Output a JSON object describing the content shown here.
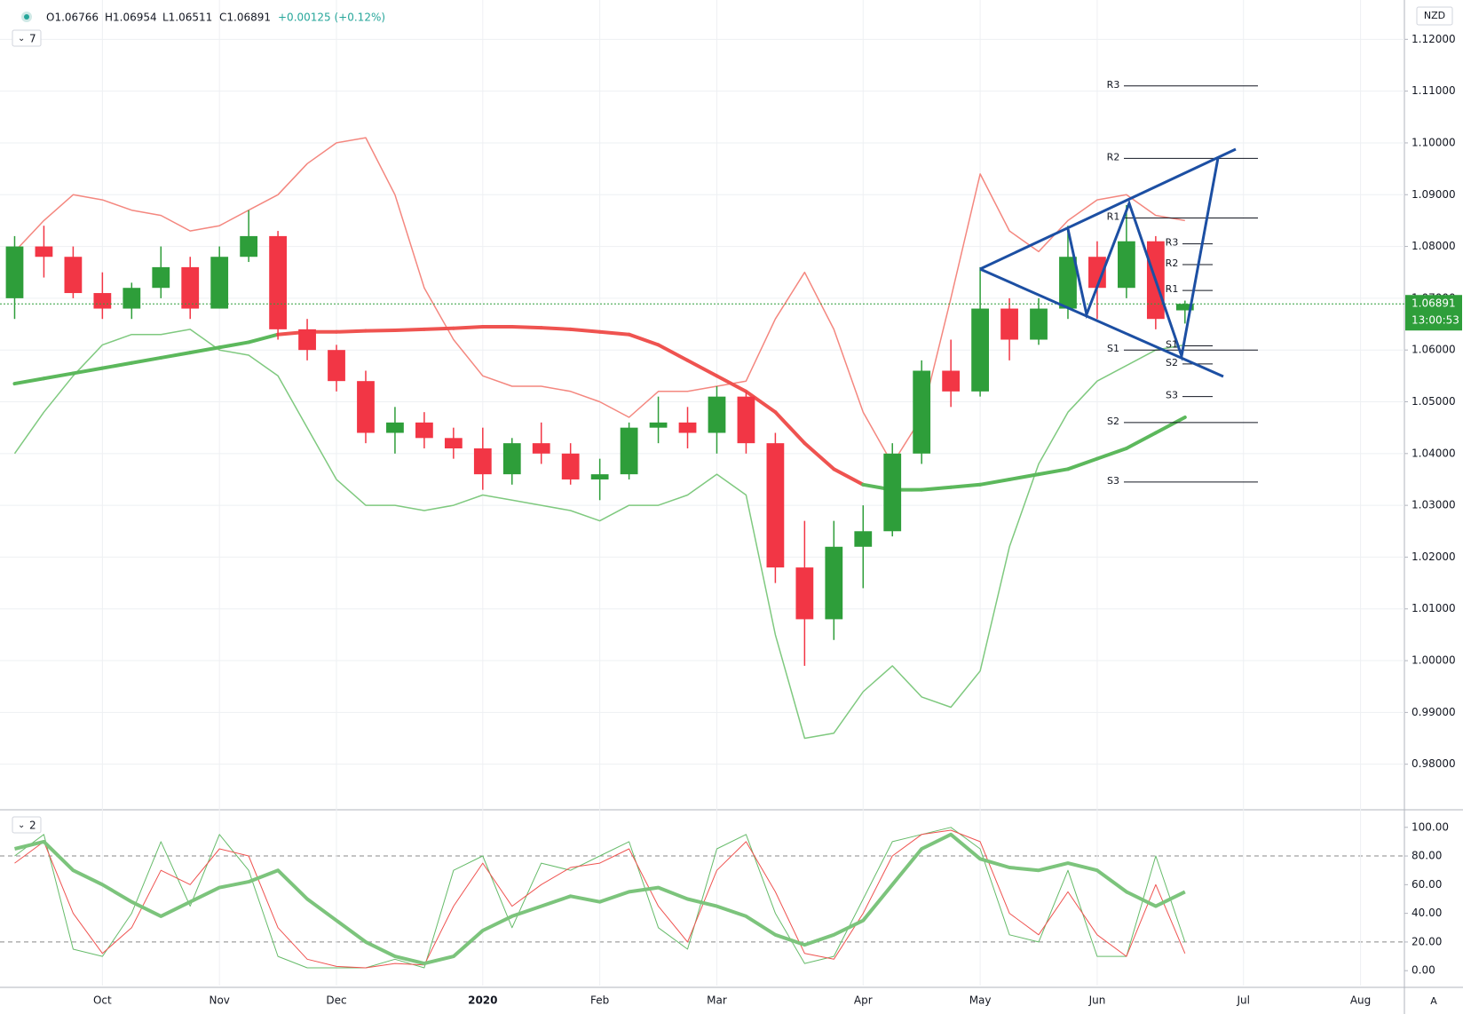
{
  "chart_data": {
    "type": "candlestick",
    "header": {
      "open": "O1.06766",
      "high": "H1.06954",
      "low": "L1.06511",
      "close": "C1.06891",
      "change": "+0.00125 (+0.12%)"
    },
    "legend_main": "7",
    "legend_osc": "2",
    "currency": "NZD",
    "axis_mode": "A",
    "last_price": {
      "value": 1.06891,
      "label": "1.06891"
    },
    "countdown": "13:00:53",
    "categories": [
      null,
      null,
      null,
      "Oct",
      null,
      null,
      null,
      "Nov",
      null,
      null,
      null,
      "Dec",
      null,
      null,
      null,
      null,
      "2020",
      null,
      null,
      null,
      "Feb",
      null,
      null,
      null,
      "Mar",
      null,
      null,
      null,
      null,
      "Apr",
      null,
      null,
      null,
      "May",
      null,
      null,
      null,
      "Jun",
      null,
      null,
      null,
      null,
      "Jul",
      null,
      null,
      null,
      "Aug",
      null
    ],
    "up_color": "#2e9e3a",
    "down_color": "#f23645",
    "open": [
      1.07,
      1.08,
      1.078,
      1.071,
      1.068,
      1.072,
      1.076,
      1.068,
      1.078,
      1.082,
      1.064,
      1.06,
      1.054,
      1.044,
      1.046,
      1.043,
      1.041,
      1.036,
      1.042,
      1.04,
      1.035,
      1.036,
      1.045,
      1.046,
      1.044,
      1.051,
      1.042,
      1.018,
      1.008,
      1.022,
      1.025,
      1.04,
      1.056,
      1.052,
      1.068,
      1.062,
      1.068,
      1.078,
      1.072,
      1.081,
      1.06766,
      null,
      null,
      null,
      null,
      null,
      null,
      null
    ],
    "high": [
      1.082,
      1.084,
      1.08,
      1.075,
      1.073,
      1.08,
      1.078,
      1.08,
      1.087,
      1.083,
      1.066,
      1.061,
      1.056,
      1.049,
      1.048,
      1.045,
      1.045,
      1.043,
      1.046,
      1.042,
      1.039,
      1.046,
      1.051,
      1.049,
      1.053,
      1.052,
      1.044,
      1.027,
      1.027,
      1.03,
      1.042,
      1.058,
      1.062,
      1.076,
      1.07,
      1.07,
      1.084,
      1.081,
      1.088,
      1.082,
      1.06954,
      null,
      null,
      null,
      null,
      null,
      null,
      null
    ],
    "low": [
      1.066,
      1.074,
      1.07,
      1.066,
      1.066,
      1.07,
      1.066,
      1.068,
      1.077,
      1.062,
      1.058,
      1.052,
      1.042,
      1.04,
      1.041,
      1.039,
      1.033,
      1.034,
      1.038,
      1.034,
      1.031,
      1.035,
      1.042,
      1.041,
      1.04,
      1.04,
      1.015,
      0.999,
      1.004,
      1.014,
      1.024,
      1.038,
      1.049,
      1.051,
      1.058,
      1.061,
      1.066,
      1.066,
      1.07,
      1.064,
      1.06511,
      null,
      null,
      null,
      null,
      null,
      null,
      null
    ],
    "close": [
      1.08,
      1.078,
      1.071,
      1.068,
      1.072,
      1.076,
      1.068,
      1.078,
      1.082,
      1.064,
      1.06,
      1.054,
      1.044,
      1.046,
      1.043,
      1.041,
      1.036,
      1.042,
      1.04,
      1.035,
      1.036,
      1.045,
      1.046,
      1.044,
      1.051,
      1.042,
      1.018,
      1.008,
      1.022,
      1.025,
      1.04,
      1.056,
      1.052,
      1.068,
      1.062,
      1.068,
      1.078,
      1.072,
      1.081,
      1.066,
      1.06891,
      null,
      null,
      null,
      null,
      null,
      null,
      null
    ],
    "moving_average": {
      "color_up": "#5cb85c",
      "color_down": "#ef5350",
      "values": [
        1.0535,
        1.0545,
        1.0555,
        1.0565,
        1.0575,
        1.0585,
        1.0595,
        1.0605,
        1.0615,
        1.063,
        1.0635,
        1.0635,
        1.0637,
        1.0638,
        1.064,
        1.0642,
        1.0645,
        1.0645,
        1.0643,
        1.064,
        1.0635,
        1.063,
        1.061,
        1.058,
        1.055,
        1.052,
        1.048,
        1.042,
        1.037,
        1.034,
        1.033,
        1.033,
        1.0335,
        1.034,
        1.035,
        1.036,
        1.037,
        1.039,
        1.041,
        1.044,
        1.047,
        null,
        null,
        null,
        null,
        null,
        null,
        null
      ]
    },
    "bands": [
      {
        "color": "#f4877f",
        "values": [
          1.079,
          1.085,
          1.09,
          1.089,
          1.087,
          1.086,
          1.083,
          1.084,
          1.087,
          1.09,
          1.096,
          1.1,
          1.101,
          1.09,
          1.072,
          1.062,
          1.055,
          1.053,
          1.053,
          1.052,
          1.05,
          1.047,
          1.052,
          1.052,
          1.053,
          1.054,
          1.066,
          1.075,
          1.064,
          1.048,
          1.038,
          1.047,
          1.07,
          1.094,
          1.083,
          1.079,
          1.085,
          1.089,
          1.09,
          1.086,
          1.085,
          null,
          null,
          null,
          null,
          null,
          null,
          null
        ]
      },
      {
        "color": "#7fc97f",
        "values": [
          1.04,
          1.048,
          1.055,
          1.061,
          1.063,
          1.063,
          1.064,
          1.06,
          1.059,
          1.055,
          1.045,
          1.035,
          1.03,
          1.03,
          1.029,
          1.03,
          1.032,
          1.031,
          1.03,
          1.029,
          1.027,
          1.03,
          1.03,
          1.032,
          1.036,
          1.032,
          1.005,
          0.985,
          0.986,
          0.994,
          0.999,
          0.993,
          0.991,
          0.998,
          1.022,
          1.038,
          1.048,
          1.054,
          1.057,
          1.06,
          1.061,
          null,
          null,
          null,
          null,
          null,
          null,
          null
        ]
      }
    ],
    "pivots": [
      {
        "label": "R3",
        "value": 1.111
      },
      {
        "label": "R2",
        "value": 1.097
      },
      {
        "label": "R1",
        "value": 1.0855
      },
      {
        "label": "S1",
        "value": 1.06
      },
      {
        "label": "S2",
        "value": 1.046
      },
      {
        "label": "S3",
        "value": 1.0345
      }
    ],
    "pivots_weekly": [
      {
        "label": "R3",
        "value": 1.0805
      },
      {
        "label": "R2",
        "value": 1.0765
      },
      {
        "label": "R1",
        "value": 1.0715
      },
      {
        "label": "S1",
        "value": 1.0608
      },
      {
        "label": "S2",
        "value": 1.0573
      },
      {
        "label": "S3",
        "value": 1.051
      }
    ],
    "ylim": [
      0.9712,
      1.1276
    ],
    "yticks": [
      {
        "value": 1.12,
        "label": "1.12000"
      },
      {
        "value": 1.11,
        "label": "1.11000"
      },
      {
        "value": 1.1,
        "label": "1.10000"
      },
      {
        "value": 1.09,
        "label": "1.09000"
      },
      {
        "value": 1.08,
        "label": "1.08000"
      },
      {
        "value": 1.07,
        "label": "1.07000"
      },
      {
        "value": 1.06,
        "label": "1.06000"
      },
      {
        "value": 1.05,
        "label": "1.05000"
      },
      {
        "value": 1.04,
        "label": "1.04000"
      },
      {
        "value": 1.03,
        "label": "1.03000"
      },
      {
        "value": 1.02,
        "label": "1.02000"
      },
      {
        "value": 1.01,
        "label": "1.01000"
      },
      {
        "value": 1.0,
        "label": "1.00000"
      },
      {
        "value": 0.99,
        "label": "0.99000"
      },
      {
        "value": 0.98,
        "label": "0.98000"
      }
    ],
    "oscillator": {
      "ylim": [
        -10.4,
        111
      ],
      "yticks": [
        {
          "value": 100,
          "label": "100.00"
        },
        {
          "value": 80,
          "label": "80.00"
        },
        {
          "value": 60,
          "label": "60.00"
        },
        {
          "value": 40,
          "label": "40.00"
        },
        {
          "value": 20,
          "label": "20.00"
        },
        {
          "value": 0,
          "label": "0.00"
        }
      ],
      "levels": [
        80,
        20
      ],
      "series": [
        {
          "color": "#66bb6a",
          "width": 1,
          "values": [
            80,
            95,
            15,
            10,
            40,
            90,
            45,
            95,
            70,
            10,
            2,
            2,
            2,
            8,
            2,
            70,
            80,
            30,
            75,
            70,
            80,
            90,
            30,
            15,
            85,
            95,
            40,
            5,
            10,
            50,
            90,
            95,
            100,
            85,
            25,
            20,
            70,
            10,
            10,
            80,
            20,
            null,
            null,
            null,
            null,
            null,
            null,
            null
          ]
        },
        {
          "color": "#ef5350",
          "width": 1,
          "values": [
            75,
            90,
            40,
            12,
            30,
            70,
            60,
            85,
            80,
            30,
            8,
            3,
            2,
            5,
            4,
            45,
            75,
            45,
            60,
            72,
            75,
            85,
            45,
            20,
            70,
            90,
            55,
            12,
            8,
            40,
            80,
            95,
            98,
            90,
            40,
            25,
            55,
            25,
            10,
            60,
            12,
            null,
            null,
            null,
            null,
            null,
            null,
            null
          ]
        },
        {
          "color": "#7cc47c",
          "width": 4,
          "values": [
            85,
            90,
            70,
            60,
            48,
            38,
            48,
            58,
            62,
            70,
            50,
            35,
            20,
            10,
            5,
            10,
            28,
            38,
            45,
            52,
            48,
            55,
            58,
            50,
            45,
            38,
            25,
            18,
            25,
            35,
            60,
            85,
            95,
            78,
            72,
            70,
            75,
            70,
            55,
            45,
            55,
            null,
            null,
            null,
            null,
            null,
            null,
            null
          ]
        }
      ]
    }
  }
}
